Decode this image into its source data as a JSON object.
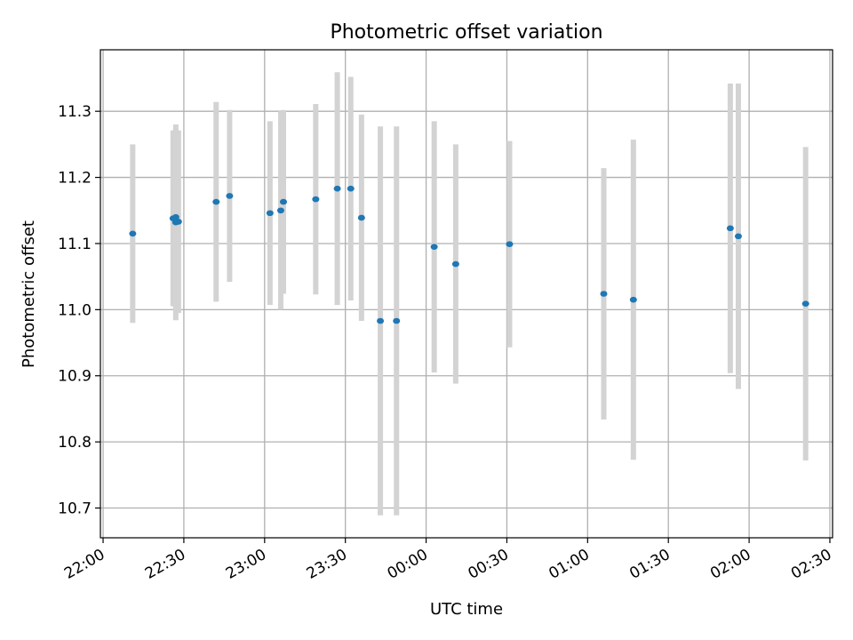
{
  "chart_data": {
    "type": "scatter",
    "title": "Photometric offset variation",
    "xlabel": "UTC time",
    "ylabel": "Photometric offset",
    "x_axis_kind": "time",
    "xlim": [
      "21:59",
      "02:31"
    ],
    "ylim": [
      10.655,
      11.393
    ],
    "grid": true,
    "x_ticks": [
      "22:00",
      "22:30",
      "23:00",
      "23:30",
      "00:00",
      "00:30",
      "01:00",
      "01:30",
      "02:00",
      "02:30"
    ],
    "y_ticks": [
      "10.7",
      "10.8",
      "10.9",
      "11.0",
      "11.1",
      "11.2",
      "11.3"
    ],
    "colors": {
      "point": "#1f77b4",
      "errorbar": "#d3d3d3",
      "grid": "#b0b0b0"
    },
    "points": [
      {
        "x": "22:11",
        "y": 11.115,
        "err": 0.135
      },
      {
        "x": "22:26",
        "y": 11.138,
        "err": 0.133
      },
      {
        "x": "22:27",
        "y": 11.132,
        "err": 0.148
      },
      {
        "x": "22:27",
        "y": 11.14,
        "err": 0.133
      },
      {
        "x": "22:28",
        "y": 11.133,
        "err": 0.138
      },
      {
        "x": "22:42",
        "y": 11.163,
        "err": 0.151
      },
      {
        "x": "22:47",
        "y": 11.172,
        "err": 0.13
      },
      {
        "x": "23:02",
        "y": 11.146,
        "err": 0.139
      },
      {
        "x": "23:06",
        "y": 11.15,
        "err": 0.15
      },
      {
        "x": "23:07",
        "y": 11.163,
        "err": 0.139
      },
      {
        "x": "23:19",
        "y": 11.167,
        "err": 0.144
      },
      {
        "x": "23:27",
        "y": 11.183,
        "err": 0.176
      },
      {
        "x": "23:32",
        "y": 11.183,
        "err": 0.169
      },
      {
        "x": "23:36",
        "y": 11.139,
        "err": 0.156
      },
      {
        "x": "23:43",
        "y": 10.983,
        "err": 0.294
      },
      {
        "x": "23:49",
        "y": 10.983,
        "err": 0.294
      },
      {
        "x": "00:03",
        "y": 11.095,
        "err": 0.19
      },
      {
        "x": "00:11",
        "y": 11.069,
        "err": 0.181
      },
      {
        "x": "00:31",
        "y": 11.099,
        "err": 0.156
      },
      {
        "x": "01:06",
        "y": 11.024,
        "err": 0.19
      },
      {
        "x": "01:17",
        "y": 11.015,
        "err": 0.242
      },
      {
        "x": "01:53",
        "y": 11.123,
        "err": 0.219
      },
      {
        "x": "01:56",
        "y": 11.111,
        "err": 0.231
      },
      {
        "x": "02:21",
        "y": 11.009,
        "err": 0.237
      }
    ]
  }
}
